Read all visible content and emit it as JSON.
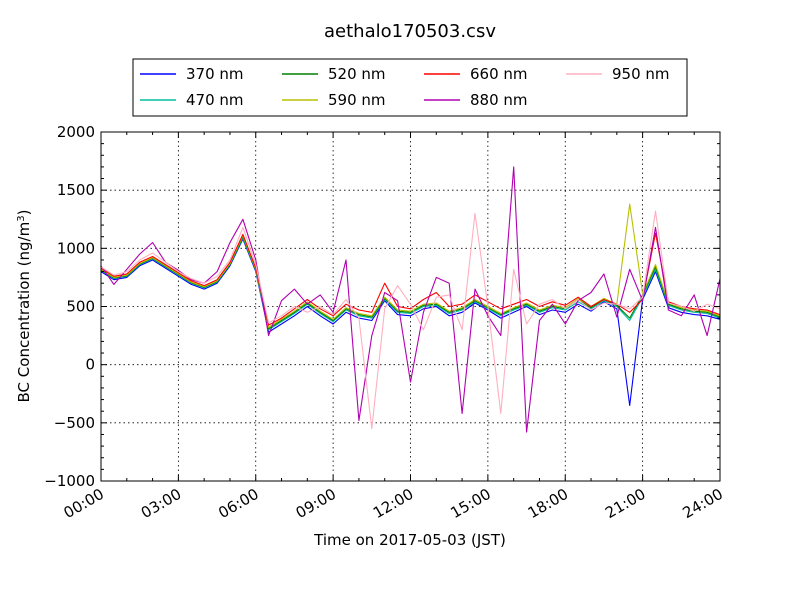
{
  "chart_data": {
    "type": "line",
    "title": "aethalo170503.csv",
    "xlabel": "Time on 2017-05-03 (JST)",
    "ylabel": "BC Concentration (ng/m³)",
    "ylabel_base": "BC Concentration (ng/m",
    "ylabel_sup": "3",
    "ylabel_tail": ")",
    "x_unit": "hour",
    "xlim": [
      0,
      24
    ],
    "ylim": [
      -1000,
      2000
    ],
    "grid": true,
    "legend_position": "top",
    "x_ticks": [
      {
        "value": 0,
        "label": "00:00"
      },
      {
        "value": 3,
        "label": "03:00"
      },
      {
        "value": 6,
        "label": "06:00"
      },
      {
        "value": 9,
        "label": "09:00"
      },
      {
        "value": 12,
        "label": "12:00"
      },
      {
        "value": 15,
        "label": "15:00"
      },
      {
        "value": 18,
        "label": "18:00"
      },
      {
        "value": 21,
        "label": "21:00"
      },
      {
        "value": 24,
        "label": "24:00"
      }
    ],
    "y_ticks": [
      {
        "value": -1000,
        "label": "−1000"
      },
      {
        "value": -500,
        "label": "−500"
      },
      {
        "value": 0,
        "label": "0"
      },
      {
        "value": 500,
        "label": "500"
      },
      {
        "value": 1000,
        "label": "1000"
      },
      {
        "value": 1500,
        "label": "1500"
      },
      {
        "value": 2000,
        "label": "2000"
      }
    ],
    "x": [
      0,
      0.5,
      1,
      1.5,
      2,
      2.5,
      3,
      3.5,
      4,
      4.5,
      5,
      5.5,
      6,
      6.5,
      7,
      7.5,
      8,
      8.5,
      9,
      9.5,
      10,
      10.5,
      11,
      11.5,
      12,
      12.5,
      13,
      13.5,
      14,
      14.5,
      15,
      15.5,
      16,
      16.5,
      17,
      17.5,
      18,
      18.5,
      19,
      19.5,
      20,
      20.5,
      21,
      21.5,
      22,
      22.5,
      23,
      23.5,
      24
    ],
    "series": [
      {
        "name": "370 nm",
        "color": "#0000ff",
        "values": [
          800,
          730,
          750,
          850,
          900,
          830,
          760,
          690,
          650,
          700,
          850,
          1080,
          800,
          280,
          350,
          420,
          500,
          420,
          350,
          450,
          400,
          380,
          550,
          430,
          420,
          480,
          500,
          420,
          450,
          530,
          470,
          400,
          450,
          500,
          430,
          470,
          450,
          520,
          460,
          540,
          480,
          -350,
          560,
          800,
          490,
          450,
          430,
          420,
          390
        ]
      },
      {
        "name": "470 nm",
        "color": "#00c0a0",
        "values": [
          810,
          740,
          760,
          860,
          910,
          840,
          770,
          700,
          660,
          710,
          860,
          1090,
          810,
          300,
          370,
          440,
          520,
          440,
          370,
          470,
          420,
          400,
          560,
          450,
          440,
          500,
          510,
          440,
          470,
          540,
          480,
          420,
          470,
          510,
          450,
          490,
          470,
          540,
          480,
          550,
          500,
          380,
          580,
          820,
          510,
          470,
          450,
          440,
          400
        ]
      },
      {
        "name": "520 nm",
        "color": "#008000",
        "values": [
          815,
          745,
          765,
          865,
          915,
          845,
          775,
          705,
          665,
          715,
          865,
          1100,
          815,
          310,
          380,
          450,
          530,
          450,
          380,
          480,
          430,
          410,
          570,
          460,
          450,
          510,
          520,
          450,
          480,
          550,
          490,
          430,
          480,
          520,
          460,
          500,
          480,
          560,
          490,
          560,
          510,
          400,
          600,
          840,
          520,
          480,
          460,
          450,
          410
        ]
      },
      {
        "name": "590 nm",
        "color": "#b8c000",
        "values": [
          820,
          750,
          770,
          870,
          920,
          850,
          780,
          710,
          670,
          720,
          870,
          1110,
          820,
          320,
          390,
          460,
          540,
          460,
          390,
          490,
          440,
          420,
          580,
          470,
          460,
          520,
          530,
          460,
          490,
          560,
          500,
          440,
          490,
          530,
          470,
          510,
          490,
          570,
          500,
          570,
          520,
          1380,
          610,
          860,
          530,
          490,
          470,
          460,
          420
        ]
      },
      {
        "name": "660 nm",
        "color": "#ff0000",
        "values": [
          830,
          760,
          780,
          880,
          930,
          860,
          790,
          720,
          680,
          730,
          880,
          1120,
          830,
          340,
          400,
          480,
          560,
          480,
          420,
          520,
          470,
          450,
          700,
          500,
          480,
          560,
          620,
          500,
          520,
          600,
          540,
          480,
          520,
          560,
          500,
          540,
          510,
          580,
          500,
          560,
          520,
          450,
          560,
          1130,
          540,
          500,
          480,
          470,
          430
        ]
      },
      {
        "name": "880 nm",
        "color": "#b000b0",
        "values": [
          850,
          690,
          820,
          950,
          1050,
          880,
          810,
          730,
          700,
          800,
          1050,
          1250,
          900,
          250,
          550,
          650,
          520,
          600,
          450,
          900,
          -480,
          250,
          620,
          550,
          -150,
          450,
          750,
          700,
          -420,
          650,
          420,
          250,
          1700,
          -580,
          380,
          520,
          350,
          550,
          620,
          780,
          410,
          820,
          550,
          1180,
          470,
          420,
          600,
          250,
          740
        ]
      },
      {
        "name": "950 nm",
        "color": "#ffb0c0",
        "values": [
          840,
          770,
          800,
          900,
          960,
          880,
          800,
          740,
          700,
          760,
          900,
          1180,
          860,
          360,
          420,
          500,
          450,
          500,
          430,
          560,
          400,
          -550,
          480,
          680,
          520,
          300,
          580,
          600,
          300,
          1300,
          500,
          -420,
          820,
          350,
          520,
          560,
          480,
          560,
          470,
          530,
          520,
          480,
          580,
          1320,
          530,
          500,
          460,
          520,
          480
        ]
      }
    ]
  }
}
